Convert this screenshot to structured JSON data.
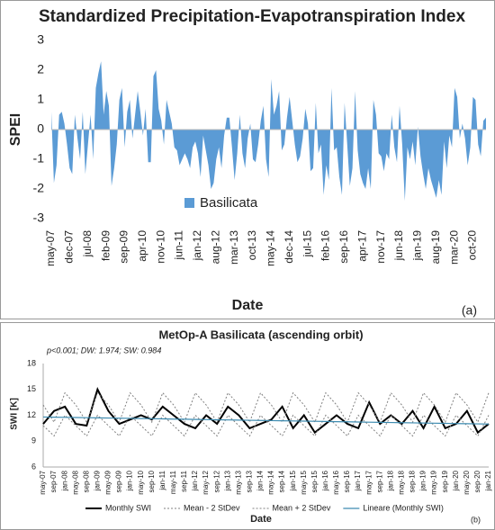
{
  "chart_data": [
    {
      "type": "area",
      "title": "Standardized Precipitation-Evapotranspiration Index",
      "x_label": "Date",
      "y_label": "SPEI",
      "annotation": "(a)",
      "ylim": [
        -3,
        3
      ],
      "yticks": [
        -3,
        -2,
        -1,
        0,
        1,
        2,
        3
      ],
      "grid": false,
      "legend": "bottom",
      "categories": [
        "may-07",
        null,
        null,
        null,
        null,
        null,
        null,
        "dec-07",
        null,
        null,
        null,
        null,
        null,
        null,
        "jul-08",
        null,
        null,
        null,
        null,
        null,
        null,
        "feb-09",
        null,
        null,
        null,
        null,
        null,
        null,
        "sep-09",
        null,
        null,
        null,
        null,
        null,
        null,
        "apr-10",
        null,
        null,
        null,
        null,
        null,
        null,
        "nov-10",
        null,
        null,
        null,
        null,
        null,
        null,
        "jun-11",
        null,
        null,
        null,
        null,
        null,
        null,
        "jan-12",
        null,
        null,
        null,
        null,
        null,
        null,
        "aug-12",
        null,
        null,
        null,
        null,
        null,
        null,
        "mar-13",
        null,
        null,
        null,
        null,
        null,
        null,
        "oct-13",
        null,
        null,
        null,
        null,
        null,
        null,
        "may-14",
        null,
        null,
        null,
        null,
        null,
        null,
        "dec-14",
        null,
        null,
        null,
        null,
        null,
        null,
        "jul-15",
        null,
        null,
        null,
        null,
        null,
        null,
        "feb-16",
        null,
        null,
        null,
        null,
        null,
        null,
        "sep-16",
        null,
        null,
        null,
        null,
        null,
        null,
        "apr-17",
        null,
        null,
        null,
        null,
        null,
        null,
        "nov-17",
        null,
        null,
        null,
        null,
        null,
        null,
        "jun-18",
        null,
        null,
        null,
        null,
        null,
        null,
        "jan-19",
        null,
        null,
        null,
        null,
        null,
        null,
        "aug-19",
        null,
        null,
        null,
        null,
        null,
        null,
        "mar-20",
        null,
        null,
        null,
        null,
        null,
        null,
        "oct-20",
        null,
        null,
        null,
        null,
        null
      ],
      "series": [
        {
          "name": "Basilicata",
          "color": "#5b9bd5",
          "values": [
            0.6,
            -1.8,
            -1.2,
            0.5,
            0.6,
            0.2,
            -0.5,
            -1.3,
            -1.5,
            0.5,
            -0.3,
            -1.0,
            0.6,
            -1.5,
            -0.5,
            0.5,
            -1.0,
            1.4,
            1.9,
            2.3,
            0.5,
            1.3,
            0.8,
            -1.9,
            -1.3,
            -0.5,
            1.0,
            1.4,
            -0.6,
            0.6,
            1.0,
            -0.3,
            0.5,
            1.3,
            0.6,
            -0.2,
            0.7,
            -1.1,
            -1.1,
            1.8,
            2.0,
            0.7,
            0.3,
            -0.5,
            1.0,
            0.6,
            0.2,
            -0.6,
            -0.7,
            -1.2,
            -1.0,
            -0.8,
            -1.0,
            -1.3,
            -0.6,
            -0.4,
            -0.8,
            -1.6,
            -0.2,
            -0.7,
            -1.2,
            -2.0,
            -1.8,
            -1.0,
            -0.6,
            -1.3,
            -0.2,
            0.4,
            0.4,
            -0.6,
            -1.7,
            -0.8,
            0.5,
            -0.8,
            -1.3,
            -0.3,
            0.2,
            -1.0,
            -1.1,
            -0.5,
            0.3,
            0.8,
            -1.0,
            -1.6,
            1.7,
            0.5,
            0.8,
            1.3,
            -0.7,
            -0.5,
            0.4,
            1.1,
            0.3,
            -0.5,
            -1.1,
            -0.9,
            -0.3,
            0.7,
            0.2,
            -1.4,
            -1.3,
            0.9,
            -0.8,
            -0.5,
            -2.2,
            -1.2,
            -1.7,
            1.4,
            -0.7,
            -0.6,
            -1.6,
            -2.2,
            0.9,
            -0.5,
            -1.9,
            -1.3,
            1.3,
            -0.7,
            -1.5,
            -1.8,
            -2.0,
            -1.3,
            -2.0,
            1.0,
            0.5,
            -0.8,
            -0.9,
            -1.4,
            -0.8,
            -1.0,
            0.5,
            -0.6,
            -1.1,
            0.8,
            -0.5,
            -2.4,
            -0.6,
            -1.0,
            -0.4,
            -1.2,
            0.1,
            -0.9,
            -1.5,
            -2.0,
            -1.3,
            -1.7,
            -2.0,
            -2.3,
            -1.7,
            -2.2,
            -0.4,
            -1.3,
            -0.2,
            -0.6,
            1.4,
            1.1,
            -0.3,
            0.2,
            -0.3,
            -1.2,
            -0.6,
            1.1,
            1.0,
            -0.5,
            -0.9,
            0.3,
            0.4
          ]
        }
      ]
    },
    {
      "type": "line",
      "title": "MetOp-A Basilicata (ascending orbit)",
      "x_label": "Date",
      "y_label": "SWI [K]",
      "annotation": "(b)",
      "stats": "p<0.001; DW: 1.974; SW: 0.984",
      "ylim": [
        6,
        18
      ],
      "yticks": [
        6,
        9,
        12,
        15,
        18
      ],
      "grid": false,
      "legend": "bottom",
      "categories": [
        "may-07",
        "sep-07",
        "jan-08",
        "may-08",
        "sep-08",
        "jan-09",
        "may-09",
        "sep-09",
        "jan-10",
        "may-10",
        "sep-10",
        "jan-11",
        "may-11",
        "sep-11",
        "jan-12",
        "may-12",
        "sep-12",
        "jan-13",
        "may-13",
        "sep-13",
        "jan-14",
        "may-14",
        "sep-14",
        "jan-15",
        "may-15",
        "sep-15",
        "jan-16",
        "may-16",
        "sep-16",
        "jan-17",
        "may-17",
        "sep-17",
        "jan-18",
        "may-18",
        "sep-18",
        "jan-19",
        "may-19",
        "sep-19",
        "jan-20",
        "may-20",
        "sep-20",
        "jan-21"
      ],
      "series": [
        {
          "name": "Monthly SWI",
          "color": "#000000",
          "dash": "solid",
          "width": 2,
          "values": [
            11,
            12.5,
            13,
            11,
            10.8,
            15,
            12.5,
            11,
            11.5,
            12,
            11.5,
            13,
            12,
            11,
            10.5,
            12,
            11,
            13,
            12,
            10.5,
            11,
            11.5,
            13,
            10.5,
            12,
            10,
            11,
            12,
            11,
            10.5,
            13.5,
            11,
            12,
            11,
            12.5,
            10.5,
            13,
            10.5,
            11,
            12.5,
            10,
            11
          ]
        },
        {
          "name": "Mean - 2 StDev",
          "color": "#808080",
          "dash": "dotted",
          "width": 1,
          "values": [
            10.8,
            9.6,
            12,
            10.8,
            9.6,
            12,
            10.8,
            9.6,
            12,
            10.8,
            9.6,
            12,
            10.8,
            9.6,
            12,
            10.8,
            9.6,
            12,
            10.8,
            9.6,
            12,
            10.8,
            9.6,
            12,
            10.8,
            9.6,
            12,
            10.8,
            9.6,
            12,
            10.8,
            9.6,
            12,
            10.8,
            9.6,
            12,
            10.8,
            9.6,
            12,
            10.8,
            9.6,
            12
          ]
        },
        {
          "name": "Mean + 2 StDev",
          "color": "#808080",
          "dash": "dotted",
          "width": 1,
          "values": [
            13.2,
            11.2,
            14.6,
            13.2,
            11.2,
            14.6,
            13.2,
            11.2,
            14.6,
            13.2,
            11.2,
            14.6,
            13.2,
            11.2,
            14.6,
            13.2,
            11.2,
            14.6,
            13.2,
            11.2,
            14.6,
            13.2,
            11.2,
            14.6,
            13.2,
            11.2,
            14.6,
            13.2,
            11.2,
            14.6,
            13.2,
            11.2,
            14.6,
            13.2,
            11.2,
            14.6,
            13.2,
            11.2,
            14.6,
            13.2,
            11.2,
            14.6
          ]
        },
        {
          "name": "Lineare (Monthly SWI)",
          "color": "#3d8bb0",
          "dash": "solid",
          "width": 1.2,
          "values": [
            11.8,
            11.78,
            11.76,
            11.74,
            11.72,
            11.7,
            11.68,
            11.66,
            11.64,
            11.62,
            11.6,
            11.58,
            11.56,
            11.54,
            11.52,
            11.5,
            11.48,
            11.46,
            11.44,
            11.42,
            11.4,
            11.38,
            11.36,
            11.34,
            11.32,
            11.3,
            11.28,
            11.26,
            11.24,
            11.22,
            11.2,
            11.18,
            11.16,
            11.14,
            11.12,
            11.1,
            11.08,
            11.06,
            11.04,
            11.02,
            11,
            10.98
          ]
        }
      ]
    }
  ]
}
